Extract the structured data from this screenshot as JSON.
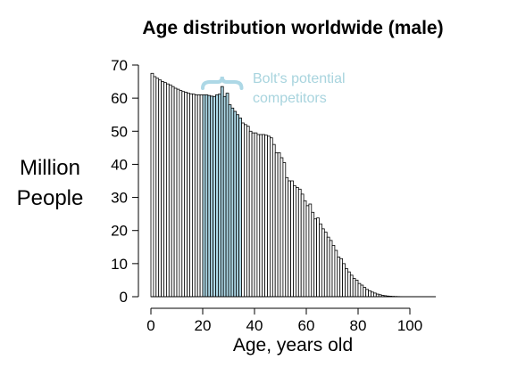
{
  "chart_data": {
    "type": "bar",
    "title": "Age distribution worldwide (male)",
    "xlabel": "Age, years old",
    "ylabel": "Million People",
    "xlim": [
      0,
      110
    ],
    "ylim": [
      0,
      70
    ],
    "xticks": [
      0,
      20,
      40,
      60,
      80,
      100
    ],
    "yticks": [
      0,
      10,
      20,
      30,
      40,
      50,
      60,
      70
    ],
    "grid": false,
    "highlight": {
      "range": [
        20,
        35
      ],
      "color": "#add8e6",
      "label_line1": "Bolt's potential",
      "label_line2": "competitors"
    },
    "x": [
      0,
      1,
      2,
      3,
      4,
      5,
      6,
      7,
      8,
      9,
      10,
      11,
      12,
      13,
      14,
      15,
      16,
      17,
      18,
      19,
      20,
      21,
      22,
      23,
      24,
      25,
      26,
      27,
      28,
      29,
      30,
      31,
      32,
      33,
      34,
      35,
      36,
      37,
      38,
      39,
      40,
      41,
      42,
      43,
      44,
      45,
      46,
      47,
      48,
      49,
      50,
      51,
      52,
      53,
      54,
      55,
      56,
      57,
      58,
      59,
      60,
      61,
      62,
      63,
      64,
      65,
      66,
      67,
      68,
      69,
      70,
      71,
      72,
      73,
      74,
      75,
      76,
      77,
      78,
      79,
      80,
      81,
      82,
      83,
      84,
      85,
      86,
      87,
      88,
      89,
      90,
      91,
      92,
      93,
      94,
      95,
      96,
      97,
      98,
      99
    ],
    "values": [
      67.5,
      66.5,
      66,
      65.5,
      65,
      64.7,
      64.3,
      64,
      63.5,
      63,
      62.7,
      62.3,
      62,
      61.8,
      61.5,
      61.3,
      61.2,
      61,
      61,
      61,
      61,
      61,
      60.8,
      60.6,
      60.5,
      61,
      61.2,
      63.5,
      60.5,
      61.5,
      58,
      57,
      56,
      55,
      54,
      52.5,
      52,
      51.5,
      50,
      49.5,
      49.5,
      49,
      49,
      49,
      48.8,
      48.5,
      48,
      46,
      43.5,
      43.5,
      42,
      40.5,
      36,
      35,
      35,
      33.5,
      33,
      32.5,
      31,
      29,
      27.5,
      28,
      25.5,
      23.5,
      23.8,
      22,
      20.5,
      19.5,
      18,
      17,
      15.5,
      14,
      12,
      11.5,
      10,
      8.5,
      7.5,
      6.5,
      5.5,
      5,
      4,
      3.5,
      2.8,
      2.2,
      1.8,
      1.4,
      1.1,
      0.8,
      0.6,
      0.4,
      0.3,
      0.2,
      0.15,
      0.1,
      0.07,
      0.05,
      0.03,
      0.02,
      0.01,
      0.01
    ]
  }
}
